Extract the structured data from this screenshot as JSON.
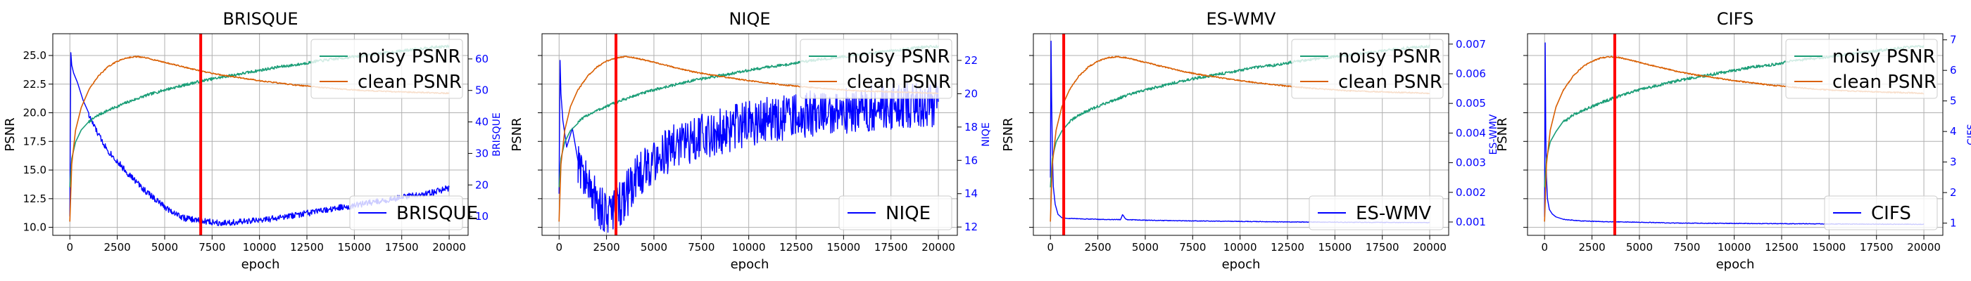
{
  "chart_data": [
    {
      "type": "line",
      "title": "BRISQUE",
      "xlabel": "epoch",
      "ylabel": "PSNR",
      "ylabel_right": "BRISQUE",
      "xlim": [
        -900,
        21000
      ],
      "xticks": [
        0,
        2500,
        5000,
        7500,
        10000,
        12500,
        15000,
        17500,
        20000
      ],
      "ylim": [
        9.3,
        26.9
      ],
      "yticks": [
        10.0,
        12.5,
        15.0,
        17.5,
        20.0,
        22.5,
        25.0
      ],
      "ytick_labels": [
        "10.0",
        "12.5",
        "15.0",
        "17.5",
        "20.0",
        "22.5",
        "25.0"
      ],
      "ylim_right": [
        4,
        68
      ],
      "yticks_right": [
        10,
        20,
        30,
        40,
        50,
        60
      ],
      "ytick_labels_right": [
        "10",
        "20",
        "30",
        "40",
        "50",
        "60"
      ],
      "grid": true,
      "vline_x": 6900,
      "legends": [
        {
          "position": "top-right",
          "entries": [
            {
              "label": "noisy PSNR",
              "color": "#1b9e77"
            },
            {
              "label": "clean PSNR",
              "color": "#d95f02"
            }
          ]
        },
        {
          "position": "bottom-right",
          "entries": [
            {
              "label": "BRISQUE",
              "color": "#0000ff"
            }
          ]
        }
      ],
      "series": [
        {
          "name": "noisy PSNR",
          "axis": "left",
          "color": "#1b9e77",
          "noise": 0.12,
          "x": [
            0,
            100,
            300,
            600,
            1000,
            1500,
            2000,
            3000,
            4000,
            5000,
            6000,
            7000,
            8000,
            9000,
            10000,
            11000,
            12000,
            13000,
            14000,
            15000,
            16000,
            17000,
            18000,
            19000,
            20000
          ],
          "y": [
            13.5,
            16.0,
            17.5,
            18.4,
            19.2,
            19.8,
            20.2,
            20.9,
            21.5,
            22.0,
            22.4,
            22.8,
            23.1,
            23.4,
            23.7,
            24.0,
            24.2,
            24.5,
            24.7,
            24.9,
            25.1,
            25.3,
            25.5,
            25.7,
            25.8
          ]
        },
        {
          "name": "clean PSNR",
          "axis": "left",
          "color": "#d95f02",
          "noise": 0.05,
          "x": [
            0,
            100,
            300,
            600,
            1000,
            1500,
            2000,
            2500,
            3000,
            3500,
            4000,
            4500,
            5000,
            6000,
            7000,
            8000,
            10000,
            12000,
            14000,
            16000,
            18000,
            20000
          ],
          "y": [
            10.5,
            15.5,
            18.5,
            20.5,
            22.0,
            23.2,
            24.0,
            24.5,
            24.8,
            24.9,
            24.8,
            24.6,
            24.4,
            24.0,
            23.6,
            23.3,
            22.8,
            22.4,
            22.1,
            21.9,
            21.8,
            21.7
          ]
        },
        {
          "name": "BRISQUE",
          "axis": "right",
          "color": "#0000ff",
          "noise": 1.0,
          "x": [
            0,
            50,
            100,
            200,
            400,
            700,
            1000,
            1500,
            2000,
            3000,
            4000,
            5000,
            6000,
            7000,
            8000,
            9000,
            10000,
            11000,
            12000,
            13000,
            14000,
            15000,
            16000,
            17000,
            18000,
            19000,
            20000
          ],
          "y": [
            10,
            62,
            58,
            56,
            53,
            47,
            42,
            36,
            31,
            24,
            18,
            13,
            9.5,
            8.5,
            8.0,
            8.2,
            8.8,
            9.5,
            10.5,
            11.5,
            12.5,
            13.5,
            14.5,
            15.5,
            16.5,
            17.5,
            19.0
          ]
        }
      ]
    },
    {
      "type": "line",
      "title": "NIQE",
      "xlabel": "epoch",
      "ylabel": "PSNR",
      "ylabel_right": "NIQE",
      "xlim": [
        -900,
        21000
      ],
      "xticks": [
        0,
        2500,
        5000,
        7500,
        10000,
        12500,
        15000,
        17500,
        20000
      ],
      "ylim": [
        9.3,
        26.9
      ],
      "yticks": [
        10.0,
        12.5,
        15.0,
        17.5,
        20.0,
        22.5,
        25.0
      ],
      "ytick_labels": [
        "",
        "",
        "",
        "",
        "",
        "",
        ""
      ],
      "ylim_right": [
        11.5,
        23.6
      ],
      "yticks_right": [
        12,
        14,
        16,
        18,
        20,
        22
      ],
      "ytick_labels_right": [
        "12",
        "14",
        "16",
        "18",
        "20",
        "22"
      ],
      "grid": true,
      "vline_x": 3000,
      "legends": [
        {
          "position": "top-right",
          "entries": [
            {
              "label": "noisy PSNR",
              "color": "#1b9e77"
            },
            {
              "label": "clean PSNR",
              "color": "#d95f02"
            }
          ]
        },
        {
          "position": "bottom-right",
          "entries": [
            {
              "label": "NIQE",
              "color": "#0000ff"
            }
          ]
        }
      ],
      "series": [
        {
          "name": "noisy PSNR",
          "axis": "left",
          "color": "#1b9e77",
          "noise": 0.12,
          "x": [
            0,
            100,
            300,
            600,
            1000,
            1500,
            2000,
            3000,
            4000,
            5000,
            6000,
            7000,
            8000,
            9000,
            10000,
            11000,
            12000,
            13000,
            14000,
            15000,
            16000,
            17000,
            18000,
            19000,
            20000
          ],
          "y": [
            13.5,
            16.0,
            17.5,
            18.4,
            19.2,
            19.8,
            20.2,
            20.9,
            21.5,
            22.0,
            22.4,
            22.8,
            23.1,
            23.4,
            23.7,
            24.0,
            24.2,
            24.5,
            24.7,
            24.9,
            25.1,
            25.3,
            25.5,
            25.7,
            25.8
          ]
        },
        {
          "name": "clean PSNR",
          "axis": "left",
          "color": "#d95f02",
          "noise": 0.05,
          "x": [
            0,
            100,
            300,
            600,
            1000,
            1500,
            2000,
            2500,
            3000,
            3500,
            4000,
            4500,
            5000,
            6000,
            7000,
            8000,
            10000,
            12000,
            14000,
            16000,
            18000,
            20000
          ],
          "y": [
            10.5,
            15.5,
            18.5,
            20.5,
            22.0,
            23.2,
            24.0,
            24.5,
            24.8,
            24.9,
            24.8,
            24.6,
            24.4,
            24.0,
            23.6,
            23.3,
            22.8,
            22.4,
            22.1,
            21.9,
            21.8,
            21.7
          ]
        },
        {
          "name": "NIQE",
          "axis": "right",
          "color": "#0000ff",
          "noise": 1.4,
          "x": [
            0,
            50,
            100,
            200,
            400,
            700,
            1000,
            1500,
            2000,
            2500,
            3000,
            3500,
            4000,
            5000,
            6000,
            7000,
            8000,
            9000,
            10000,
            12000,
            14000,
            16000,
            18000,
            20000
          ],
          "y": [
            14,
            22,
            20,
            19,
            18,
            17,
            16,
            14.5,
            13.5,
            12.8,
            13.0,
            13.8,
            14.8,
            16.0,
            16.8,
            17.2,
            17.6,
            17.9,
            18.2,
            18.6,
            18.9,
            19.1,
            19.3,
            19.4
          ]
        }
      ]
    },
    {
      "type": "line",
      "title": "ES-WMV",
      "xlabel": "epoch",
      "ylabel": "PSNR",
      "ylabel_right": "ES-WMV",
      "xlim": [
        -900,
        21000
      ],
      "xticks": [
        0,
        2500,
        5000,
        7500,
        10000,
        12500,
        15000,
        17500,
        20000
      ],
      "ylim": [
        9.3,
        26.9
      ],
      "yticks": [
        10.0,
        12.5,
        15.0,
        17.5,
        20.0,
        22.5,
        25.0
      ],
      "ytick_labels": [
        "",
        "",
        "",
        "",
        "",
        "",
        ""
      ],
      "ylim_right": [
        0.00055,
        0.00735
      ],
      "yticks_right": [
        0.001,
        0.002,
        0.003,
        0.004,
        0.005,
        0.006,
        0.007
      ],
      "ytick_labels_right": [
        "0.001",
        "0.002",
        "0.003",
        "0.004",
        "0.005",
        "0.006",
        "0.007"
      ],
      "grid": true,
      "vline_x": 700,
      "legends": [
        {
          "position": "top-right",
          "entries": [
            {
              "label": "noisy PSNR",
              "color": "#1b9e77"
            },
            {
              "label": "clean PSNR",
              "color": "#d95f02"
            }
          ]
        },
        {
          "position": "bottom-right",
          "entries": [
            {
              "label": "ES-WMV",
              "color": "#0000ff"
            }
          ]
        }
      ],
      "series": [
        {
          "name": "noisy PSNR",
          "axis": "left",
          "color": "#1b9e77",
          "noise": 0.12,
          "x": [
            0,
            100,
            300,
            600,
            1000,
            1500,
            2000,
            3000,
            4000,
            5000,
            6000,
            7000,
            8000,
            9000,
            10000,
            11000,
            12000,
            13000,
            14000,
            15000,
            16000,
            17000,
            18000,
            19000,
            20000
          ],
          "y": [
            13.5,
            16.0,
            17.5,
            18.4,
            19.2,
            19.8,
            20.2,
            20.9,
            21.5,
            22.0,
            22.4,
            22.8,
            23.1,
            23.4,
            23.7,
            24.0,
            24.2,
            24.5,
            24.7,
            24.9,
            25.1,
            25.3,
            25.5,
            25.7,
            25.8
          ]
        },
        {
          "name": "clean PSNR",
          "axis": "left",
          "color": "#d95f02",
          "noise": 0.05,
          "x": [
            0,
            100,
            300,
            600,
            1000,
            1500,
            2000,
            2500,
            3000,
            3500,
            4000,
            4500,
            5000,
            6000,
            7000,
            8000,
            10000,
            12000,
            14000,
            16000,
            18000,
            20000
          ],
          "y": [
            10.5,
            15.5,
            18.5,
            20.5,
            22.0,
            23.2,
            24.0,
            24.5,
            24.8,
            24.9,
            24.8,
            24.6,
            24.4,
            24.0,
            23.6,
            23.3,
            22.8,
            22.4,
            22.1,
            21.9,
            21.8,
            21.7
          ]
        },
        {
          "name": "ES-WMV",
          "axis": "right",
          "color": "#0000ff",
          "noise": 1e-05,
          "x": [
            0,
            30,
            60,
            100,
            150,
            250,
            400,
            600,
            1000,
            2000,
            3000,
            3700,
            3800,
            4000,
            5000,
            7000,
            10000,
            13000,
            16000,
            20000
          ],
          "y": [
            0.0025,
            0.0071,
            0.0052,
            0.0035,
            0.0022,
            0.0016,
            0.00125,
            0.00115,
            0.00112,
            0.0011,
            0.00108,
            0.00108,
            0.00125,
            0.00108,
            0.00106,
            0.00104,
            0.00102,
            0.001,
            0.00099,
            0.00098
          ]
        }
      ]
    },
    {
      "type": "line",
      "title": "CIFS",
      "xlabel": "epoch",
      "ylabel": "PSNR",
      "ylabel_right": "CIFS",
      "xlim": [
        -900,
        21000
      ],
      "xticks": [
        0,
        2500,
        5000,
        7500,
        10000,
        12500,
        15000,
        17500,
        20000
      ],
      "ylim": [
        9.3,
        26.9
      ],
      "yticks": [
        10.0,
        12.5,
        15.0,
        17.5,
        20.0,
        22.5,
        25.0
      ],
      "ytick_labels": [
        "",
        "",
        "",
        "",
        "",
        "",
        ""
      ],
      "ylim_right": [
        0.6,
        7.2
      ],
      "yticks_right": [
        1,
        2,
        3,
        4,
        5,
        6,
        7
      ],
      "ytick_labels_right": [
        "1",
        "2",
        "3",
        "4",
        "5",
        "6",
        "7"
      ],
      "grid": true,
      "vline_x": 3700,
      "legends": [
        {
          "position": "top-right",
          "entries": [
            {
              "label": "noisy PSNR",
              "color": "#1b9e77"
            },
            {
              "label": "clean PSNR",
              "color": "#d95f02"
            }
          ]
        },
        {
          "position": "bottom-right",
          "entries": [
            {
              "label": "CIFS",
              "color": "#0000ff"
            }
          ]
        }
      ],
      "series": [
        {
          "name": "noisy PSNR",
          "axis": "left",
          "color": "#1b9e77",
          "noise": 0.12,
          "x": [
            0,
            100,
            300,
            600,
            1000,
            1500,
            2000,
            3000,
            4000,
            5000,
            6000,
            7000,
            8000,
            9000,
            10000,
            11000,
            12000,
            13000,
            14000,
            15000,
            16000,
            17000,
            18000,
            19000,
            20000
          ],
          "y": [
            13.5,
            16.0,
            17.5,
            18.4,
            19.2,
            19.8,
            20.2,
            20.9,
            21.5,
            22.0,
            22.4,
            22.8,
            23.1,
            23.4,
            23.7,
            24.0,
            24.2,
            24.5,
            24.7,
            24.9,
            25.1,
            25.3,
            25.5,
            25.7,
            25.8
          ]
        },
        {
          "name": "clean PSNR",
          "axis": "left",
          "color": "#d95f02",
          "noise": 0.05,
          "x": [
            0,
            100,
            300,
            600,
            1000,
            1500,
            2000,
            2500,
            3000,
            3500,
            4000,
            4500,
            5000,
            6000,
            7000,
            8000,
            10000,
            12000,
            14000,
            16000,
            18000,
            20000
          ],
          "y": [
            10.5,
            15.5,
            18.5,
            20.5,
            22.0,
            23.2,
            24.0,
            24.5,
            24.8,
            24.9,
            24.8,
            24.6,
            24.4,
            24.0,
            23.6,
            23.3,
            22.8,
            22.4,
            22.1,
            21.9,
            21.8,
            21.7
          ]
        },
        {
          "name": "CIFS",
          "axis": "right",
          "color": "#0000ff",
          "noise": 0.01,
          "x": [
            0,
            30,
            60,
            100,
            150,
            250,
            400,
            600,
            1000,
            2000,
            3000,
            5000,
            7000,
            10000,
            13000,
            16000,
            20000
          ],
          "y": [
            1.2,
            6.9,
            4.0,
            2.5,
            1.8,
            1.45,
            1.3,
            1.2,
            1.12,
            1.07,
            1.05,
            1.03,
            1.0,
            0.99,
            0.98,
            0.97,
            0.96
          ]
        }
      ]
    }
  ]
}
